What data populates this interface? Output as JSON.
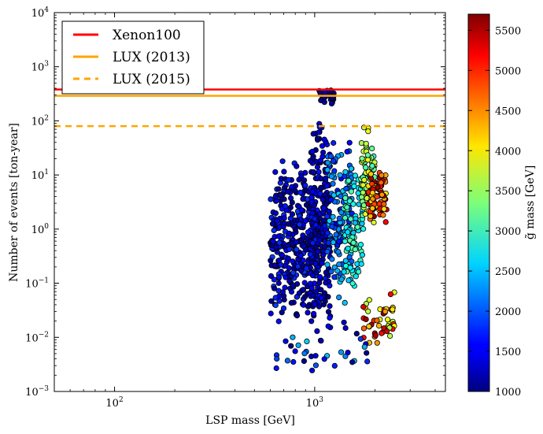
{
  "chart_data": {
    "type": "scatter",
    "xlabel": "LSP mass [GeV]",
    "ylabel": "Number of events [ton-year]",
    "xscale": "log",
    "yscale": "log",
    "xlim": [
      50,
      4500
    ],
    "ylim": [
      0.001,
      10000
    ],
    "x_ticks": [
      {
        "base": "10",
        "exp": "2",
        "value": 100
      },
      {
        "base": "10",
        "exp": "3",
        "value": 1000
      }
    ],
    "y_ticks": [
      {
        "base": "10",
        "exp": "4",
        "value": 10000
      },
      {
        "base": "10",
        "exp": "3",
        "value": 1000
      },
      {
        "base": "10",
        "exp": "2",
        "value": 100
      },
      {
        "base": "10",
        "exp": "1",
        "value": 10
      },
      {
        "base": "10",
        "exp": "0",
        "value": 1
      },
      {
        "base": "10",
        "exp": "−1",
        "value": 0.1
      },
      {
        "base": "10",
        "exp": "−2",
        "value": 0.01
      },
      {
        "base": "10",
        "exp": "−3",
        "value": 0.001
      }
    ],
    "reference_lines": [
      {
        "name": "Xenon100",
        "y": 380,
        "color": "#ff0000",
        "style": "solid"
      },
      {
        "name": "LUX (2013)",
        "y": 290,
        "color": "#ffa500",
        "style": "solid"
      },
      {
        "name": "LUX (2015)",
        "y": 80,
        "color": "#ffa500",
        "style": "dashed"
      }
    ],
    "legend": {
      "position": "top-left",
      "entries": [
        "Xenon100",
        "LUX (2013)",
        "LUX (2015)"
      ]
    },
    "colorbar": {
      "label": "g̃ mass [GeV]",
      "min": 1000,
      "max": 5700,
      "ticks": [
        1000,
        1500,
        2000,
        2500,
        3000,
        3500,
        4000,
        4500,
        5000,
        5500
      ]
    },
    "point_clusters": [
      {
        "x_range": [
          600,
          1050
        ],
        "logy_range": [
          -1.8,
          1.4
        ],
        "gluino_range": [
          1000,
          1900
        ],
        "count": 380
      },
      {
        "x_range": [
          950,
          1200
        ],
        "logy_range": [
          -2.2,
          2.2
        ],
        "gluino_range": [
          1000,
          1700
        ],
        "count": 220
      },
      {
        "x_range": [
          1050,
          1250
        ],
        "logy_range": [
          2.25,
          2.6
        ],
        "gluino_range": [
          1000,
          1400
        ],
        "count": 25
      },
      {
        "x_range": [
          1150,
          1550
        ],
        "logy_range": [
          -1.6,
          1.8
        ],
        "gluino_range": [
          1600,
          2600
        ],
        "count": 150
      },
      {
        "x_range": [
          1400,
          1750
        ],
        "logy_range": [
          -1.3,
          1.2
        ],
        "gluino_range": [
          2400,
          3200
        ],
        "count": 90
      },
      {
        "x_range": [
          1700,
          2000
        ],
        "logy_range": [
          0.0,
          2.0
        ],
        "gluino_range": [
          3000,
          3900
        ],
        "count": 90
      },
      {
        "x_range": [
          1850,
          2300
        ],
        "logy_range": [
          0.1,
          1.1
        ],
        "gluino_range": [
          4000,
          5700
        ],
        "count": 80
      },
      {
        "x_range": [
          1750,
          2500
        ],
        "logy_range": [
          -2.3,
          -1.0
        ],
        "gluino_range": [
          3500,
          5700
        ],
        "count": 50
      },
      {
        "x_range": [
          620,
          1900
        ],
        "logy_range": [
          -2.9,
          -1.5
        ],
        "gluino_range": [
          1000,
          2600
        ],
        "count": 35
      }
    ]
  }
}
